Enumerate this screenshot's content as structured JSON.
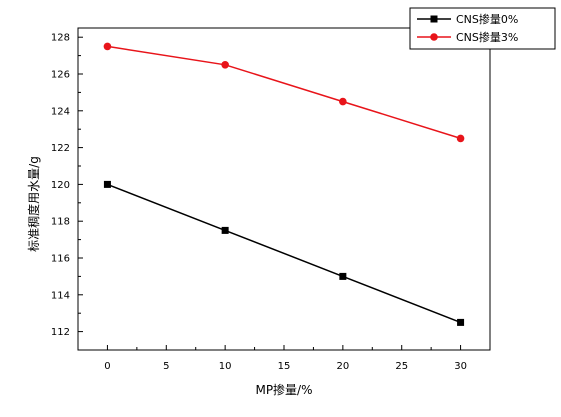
{
  "chart_data": {
    "type": "line",
    "x": [
      0,
      10,
      20,
      30
    ],
    "xlabel": "MP掺量/%",
    "ylabel": "标准稠度用水量/g",
    "xlim": [
      -2.5,
      32.5
    ],
    "ylim": [
      111,
      128.5
    ],
    "xticks": [
      0,
      5,
      10,
      15,
      20,
      25,
      30
    ],
    "yticks": [
      112,
      114,
      116,
      118,
      120,
      122,
      124,
      126,
      128
    ],
    "grid": false,
    "legend_position": "top-right",
    "series": [
      {
        "name": "CNS掺量0%",
        "values": [
          120.0,
          117.5,
          115.0,
          112.5
        ],
        "color": "#000000",
        "marker": "square"
      },
      {
        "name": "CNS掺量3%",
        "values": [
          127.5,
          126.5,
          124.5,
          122.5
        ],
        "color": "#e8141a",
        "marker": "circle"
      }
    ]
  }
}
